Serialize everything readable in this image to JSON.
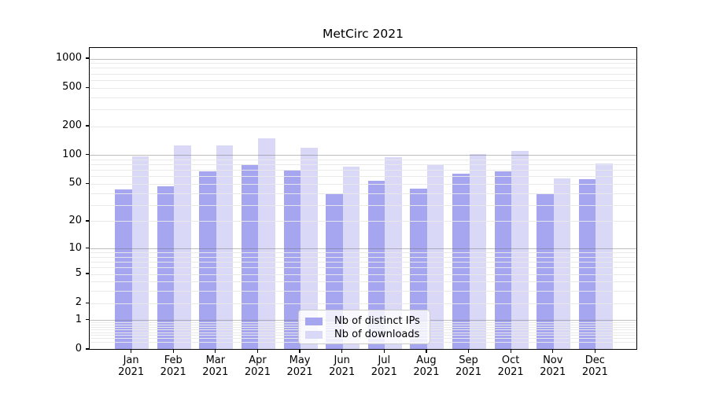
{
  "chart_data": {
    "type": "bar",
    "title": "MetCirc 2021",
    "categories": [
      {
        "month": "Jan",
        "year": "2021"
      },
      {
        "month": "Feb",
        "year": "2021"
      },
      {
        "month": "Mar",
        "year": "2021"
      },
      {
        "month": "Apr",
        "year": "2021"
      },
      {
        "month": "May",
        "year": "2021"
      },
      {
        "month": "Jun",
        "year": "2021"
      },
      {
        "month": "Jul",
        "year": "2021"
      },
      {
        "month": "Aug",
        "year": "2021"
      },
      {
        "month": "Sep",
        "year": "2021"
      },
      {
        "month": "Oct",
        "year": "2021"
      },
      {
        "month": "Nov",
        "year": "2021"
      },
      {
        "month": "Dec",
        "year": "2021"
      }
    ],
    "series": [
      {
        "name": "Nb of distinct IPs",
        "color": "#a5a5f0",
        "values": [
          44,
          48,
          68,
          79,
          70,
          40,
          54,
          45,
          64,
          68,
          39,
          57
        ]
      },
      {
        "name": "Nb of downloads",
        "color": "#d9d9f7",
        "values": [
          98,
          128,
          128,
          152,
          120,
          76,
          96,
          80,
          103,
          112,
          58,
          83
        ]
      }
    ],
    "yticks": [
      1000,
      500,
      200,
      100,
      50,
      20,
      10,
      5,
      2,
      1,
      0
    ],
    "ylim": [
      0,
      1300
    ],
    "yscale": "log10(value+1)",
    "grid": true,
    "legend_position": "lower center"
  }
}
